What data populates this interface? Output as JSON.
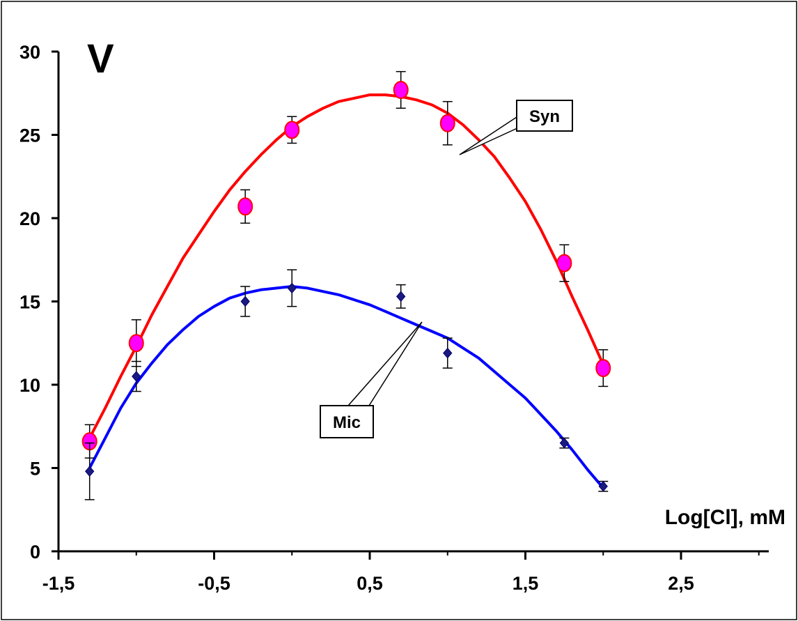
{
  "chart_data": {
    "type": "scatter",
    "panel_label": "V",
    "xlabel": "Log[Cl], mM",
    "ylabel": "",
    "xlim": [
      -1.5,
      3.0
    ],
    "ylim": [
      0,
      30
    ],
    "xticks": [
      -1.5,
      -0.5,
      0.5,
      1.5,
      2.5
    ],
    "xtick_labels": [
      "-1,5",
      "-0,5",
      "0,5",
      "1,5",
      "2,5"
    ],
    "yticks": [
      0,
      5,
      10,
      15,
      20,
      25,
      30
    ],
    "ytick_labels": [
      "0",
      "5",
      "10",
      "15",
      "20",
      "25",
      "30"
    ],
    "grid": false,
    "series": [
      {
        "name": "Syn",
        "marker": "circle",
        "marker_color": "#ff00ff",
        "marker_edge": "#ff0000",
        "line_color": "#ff0000",
        "x": [
          -1.3,
          -1.0,
          -0.3,
          0.0,
          0.7,
          1.0,
          1.75,
          2.0
        ],
        "y": [
          6.6,
          12.5,
          20.7,
          25.3,
          27.7,
          25.7,
          17.3,
          11.0
        ],
        "err": [
          1.0,
          1.4,
          1.0,
          0.8,
          1.1,
          1.3,
          1.1,
          1.1
        ],
        "fit_x": [
          -1.3,
          -1.2,
          -1.1,
          -1.0,
          -0.9,
          -0.8,
          -0.7,
          -0.6,
          -0.5,
          -0.4,
          -0.3,
          -0.2,
          -0.1,
          0.0,
          0.1,
          0.2,
          0.3,
          0.4,
          0.5,
          0.6,
          0.7,
          0.8,
          0.9,
          1.0,
          1.1,
          1.2,
          1.3,
          1.4,
          1.5,
          1.6,
          1.7,
          1.8,
          1.9,
          2.0
        ],
        "fit_y": [
          6.8,
          8.6,
          10.5,
          12.3,
          14.2,
          15.9,
          17.6,
          19.0,
          20.4,
          21.7,
          22.8,
          23.8,
          24.7,
          25.5,
          26.1,
          26.6,
          27.0,
          27.2,
          27.4,
          27.4,
          27.3,
          27.1,
          26.8,
          26.3,
          25.6,
          24.7,
          23.7,
          22.4,
          21.0,
          19.3,
          17.4,
          15.3,
          13.3,
          11.2
        ]
      },
      {
        "name": "Mic",
        "marker": "diamond",
        "marker_color": "#1a1a80",
        "marker_edge": "#000066",
        "line_color": "#0000ff",
        "x": [
          -1.3,
          -1.0,
          -0.3,
          0.0,
          0.7,
          1.0,
          1.75,
          2.0
        ],
        "y": [
          4.8,
          10.5,
          15.0,
          15.8,
          15.3,
          11.9,
          6.5,
          3.9
        ],
        "err": [
          1.7,
          0.9,
          0.9,
          1.1,
          0.7,
          0.9,
          0.3,
          0.3
        ],
        "fit_x": [
          -1.3,
          -1.2,
          -1.1,
          -1.0,
          -0.9,
          -0.8,
          -0.7,
          -0.6,
          -0.5,
          -0.4,
          -0.3,
          -0.2,
          -0.1,
          0.0,
          0.1,
          0.2,
          0.3,
          0.4,
          0.5,
          0.6,
          0.7,
          0.8,
          0.9,
          1.0,
          1.1,
          1.2,
          1.3,
          1.4,
          1.5,
          1.6,
          1.7,
          1.8,
          1.9,
          2.0
        ],
        "fit_y": [
          5.0,
          6.8,
          8.6,
          10.1,
          11.3,
          12.4,
          13.3,
          14.1,
          14.7,
          15.2,
          15.5,
          15.7,
          15.8,
          15.9,
          15.8,
          15.6,
          15.4,
          15.1,
          14.8,
          14.4,
          14.0,
          13.6,
          13.2,
          12.8,
          12.2,
          11.6,
          10.8,
          10.0,
          9.2,
          8.2,
          7.2,
          6.1,
          4.9,
          3.8
        ]
      }
    ],
    "annotations": [
      {
        "text": "Syn",
        "series": "Syn"
      },
      {
        "text": "Mic",
        "series": "Mic"
      }
    ]
  }
}
